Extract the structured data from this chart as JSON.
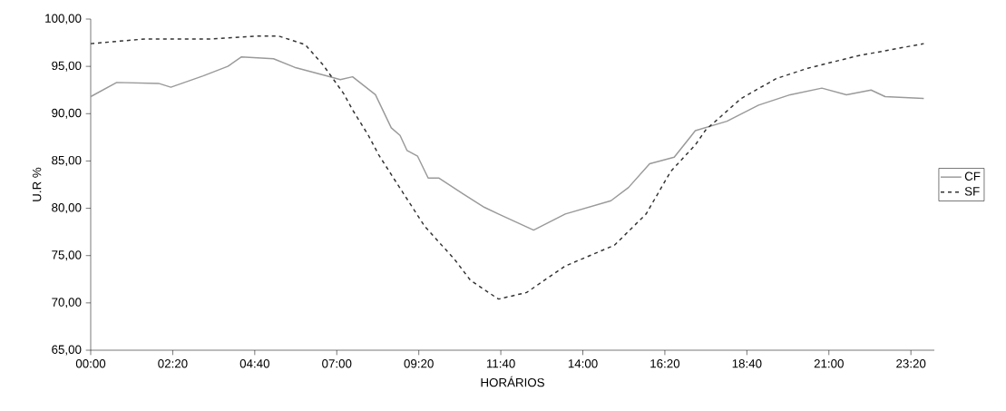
{
  "chart_data": {
    "type": "line",
    "xlabel": "HORÁRIOS",
    "ylabel": "U.R %",
    "xlim": [
      0,
      24
    ],
    "ylim": [
      65,
      100
    ],
    "xticks": [
      {
        "value": 0,
        "label": "00:00"
      },
      {
        "value": 2.3333,
        "label": "02:20"
      },
      {
        "value": 4.6667,
        "label": "04:40"
      },
      {
        "value": 7,
        "label": "07:00"
      },
      {
        "value": 9.3333,
        "label": "09:20"
      },
      {
        "value": 11.6667,
        "label": "11:40"
      },
      {
        "value": 14,
        "label": "14:00"
      },
      {
        "value": 16.3333,
        "label": "16:20"
      },
      {
        "value": 18.6667,
        "label": "18:40"
      },
      {
        "value": 21,
        "label": "21:00"
      },
      {
        "value": 23.3333,
        "label": "23:20"
      }
    ],
    "yticks": [
      {
        "value": 65,
        "label": "65,00"
      },
      {
        "value": 70,
        "label": "70,00"
      },
      {
        "value": 75,
        "label": "75,00"
      },
      {
        "value": 80,
        "label": "80,00"
      },
      {
        "value": 85,
        "label": "85,00"
      },
      {
        "value": 90,
        "label": "90,00"
      },
      {
        "value": 95,
        "label": "95,00"
      },
      {
        "value": 100,
        "label": "100,00"
      }
    ],
    "legend": "right",
    "series": [
      {
        "name": "CF",
        "color": "#9a9a9a",
        "line_style": "solid",
        "x": [
          0,
          0.74,
          1.93,
          2.28,
          3.2,
          3.9,
          4.29,
          5.2,
          5.8,
          6.7,
          7.1,
          7.45,
          8.1,
          8.55,
          8.8,
          9.0,
          9.3,
          9.6,
          9.9,
          10.6,
          11.2,
          11.6,
          12.6,
          13.5,
          14.8,
          15.3,
          15.9,
          16.6,
          17.2,
          18.1,
          19.0,
          19.9,
          20.8,
          21.5,
          22.2,
          22.6,
          23.7
        ],
        "values": [
          91.8,
          93.3,
          93.2,
          92.8,
          94.0,
          95.0,
          96.0,
          95.8,
          94.9,
          94.0,
          93.6,
          93.9,
          92.0,
          88.5,
          87.7,
          86.1,
          85.5,
          83.2,
          83.2,
          81.5,
          80.1,
          79.4,
          77.7,
          79.4,
          80.8,
          82.2,
          84.7,
          85.4,
          88.2,
          89.2,
          90.9,
          92.0,
          92.7,
          92.0,
          92.5,
          91.8,
          91.6
        ]
      },
      {
        "name": "SF",
        "color": "#333333",
        "line_style": "dashed",
        "x": [
          0,
          1.55,
          3.4,
          4.73,
          5.35,
          6.1,
          6.6,
          7.2,
          7.45,
          7.9,
          8.2,
          8.7,
          9.5,
          10.35,
          10.8,
          11.6,
          12.4,
          13.5,
          14.9,
          15.8,
          16.5,
          17.2,
          17.5,
          18.5,
          19.5,
          20.4,
          21.8,
          23.7
        ],
        "values": [
          97.4,
          97.9,
          97.9,
          98.2,
          98.2,
          97.3,
          95.2,
          92.1,
          90.4,
          87.7,
          85.6,
          82.7,
          78.1,
          74.6,
          72.4,
          70.4,
          71.1,
          73.9,
          76.1,
          79.4,
          83.9,
          86.7,
          88.3,
          91.6,
          93.7,
          94.8,
          96.1,
          97.4
        ]
      }
    ]
  }
}
